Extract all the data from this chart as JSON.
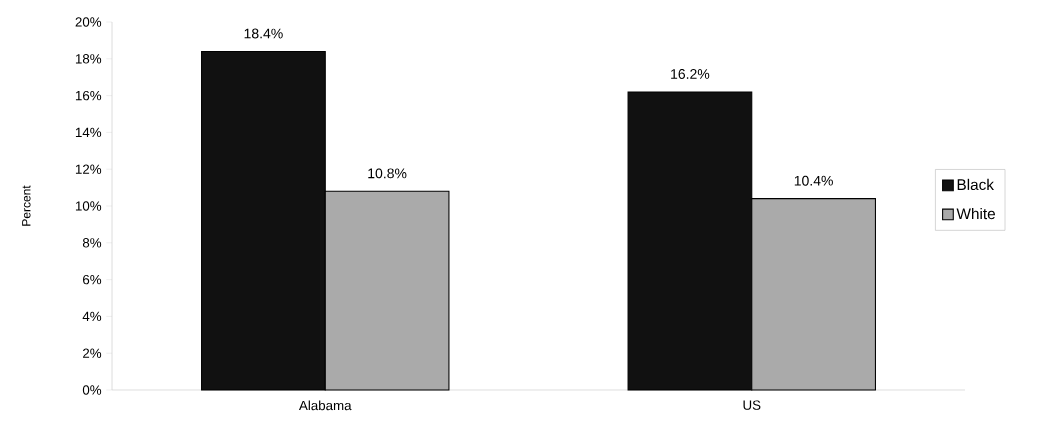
{
  "chart_data": {
    "type": "bar",
    "ylabel": "Percent",
    "categories": [
      "Alabama",
      "US"
    ],
    "series": [
      {
        "name": "Black",
        "color": "#111111",
        "values": [
          18.4,
          16.2
        ],
        "value_labels": [
          "18.4%",
          "16.2%"
        ]
      },
      {
        "name": "White",
        "color": "#aaaaaa",
        "values": [
          10.8,
          10.4
        ],
        "value_labels": [
          "10.8%",
          "10.4%"
        ]
      }
    ],
    "ylim": [
      0,
      20
    ],
    "yticks": [
      {
        "value": 0,
        "label": "0%"
      },
      {
        "value": 2,
        "label": "2%"
      },
      {
        "value": 4,
        "label": "4%"
      },
      {
        "value": 6,
        "label": "6%"
      },
      {
        "value": 8,
        "label": "8%"
      },
      {
        "value": 10,
        "label": "10%"
      },
      {
        "value": 12,
        "label": "12%"
      },
      {
        "value": 14,
        "label": "14%"
      },
      {
        "value": 16,
        "label": "16%"
      },
      {
        "value": 18,
        "label": "18%"
      },
      {
        "value": 20,
        "label": "20%"
      }
    ],
    "legend": "right"
  }
}
